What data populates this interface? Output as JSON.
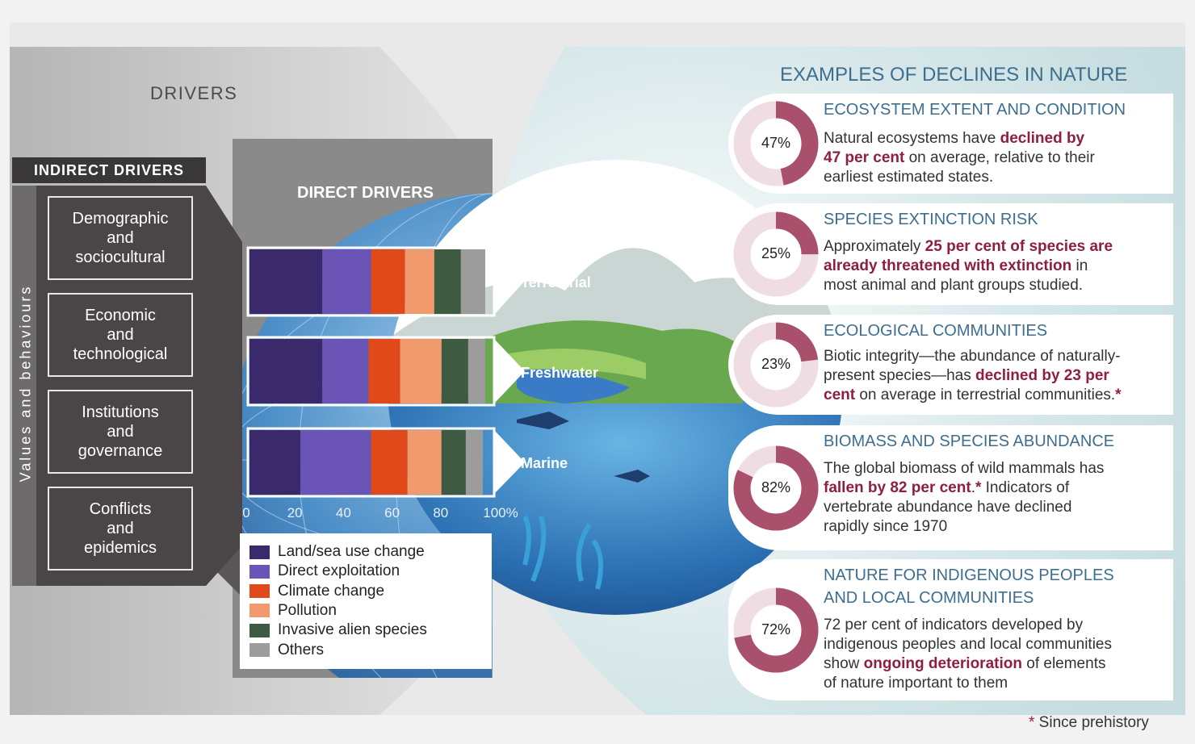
{
  "drivers_title": "DRIVERS",
  "indirect": {
    "header": "INDIRECT DRIVERS",
    "values_label": "Values and behaviours",
    "boxes": [
      [
        "Demographic",
        "and",
        "sociocultural"
      ],
      [
        "Economic",
        "and",
        "technological"
      ],
      [
        "Institutions",
        "and",
        "governance"
      ],
      [
        "Conflicts",
        "and",
        "epidemics"
      ]
    ]
  },
  "chart_data": {
    "type": "bar",
    "orientation": "horizontal",
    "stacked": true,
    "title": "DIRECT DRIVERS",
    "categories": [
      "Terrestrial",
      "Freshwater",
      "Marine"
    ],
    "xlim": [
      0,
      100
    ],
    "xticks": [
      "0",
      "20",
      "40",
      "60",
      "80",
      "100%"
    ],
    "series": [
      {
        "name": "Land/sea use change",
        "color": "#3b2a6b",
        "values": [
          30,
          30,
          21
        ]
      },
      {
        "name": "Direct exploitation",
        "color": "#6a55b6",
        "values": [
          20,
          19,
          29
        ]
      },
      {
        "name": "Climate change",
        "color": "#e04a1a",
        "values": [
          14,
          13,
          15
        ]
      },
      {
        "name": "Pollution",
        "color": "#f09a6e",
        "values": [
          12,
          17,
          14
        ]
      },
      {
        "name": "Invasive alien species",
        "color": "#3e5a40",
        "values": [
          11,
          11,
          10
        ]
      },
      {
        "name": "Others",
        "color": "#9c9c9c",
        "values": [
          10,
          7,
          7
        ]
      }
    ]
  },
  "examples": {
    "title": "EXAMPLES OF DECLINES IN NATURE",
    "cards": [
      {
        "title": [
          "ECOSYSTEM EXTENT AND CONDITION"
        ],
        "pct_label": "47%",
        "pct": 47,
        "body": [
          [
            {
              "t": "Natural ecosystems have "
            },
            {
              "t": "declined by",
              "b": true
            }
          ],
          [
            {
              "t": "47 per cent",
              "b": true
            },
            {
              "t": " on average, relative to their"
            }
          ],
          [
            {
              "t": "earliest estimated states."
            }
          ]
        ]
      },
      {
        "title": [
          "SPECIES EXTINCTION RISK"
        ],
        "pct_label": "25%",
        "pct": 25,
        "body": [
          [
            {
              "t": "Approximately "
            },
            {
              "t": "25 per cent of species are",
              "b": true
            }
          ],
          [
            {
              "t": "already threatened with extinction",
              "b": true
            },
            {
              "t": " in"
            }
          ],
          [
            {
              "t": "most animal and plant groups studied."
            }
          ]
        ]
      },
      {
        "title": [
          "ECOLOGICAL COMMUNITIES"
        ],
        "pct_label": "23%",
        "pct": 23,
        "body": [
          [
            {
              "t": "Biotic integrity—the abundance of naturally-"
            }
          ],
          [
            {
              "t": "present species—has "
            },
            {
              "t": "declined by 23 per",
              "b": true
            }
          ],
          [
            {
              "t": "cent",
              "b": true
            },
            {
              "t": " on average in terrestrial communities."
            },
            {
              "t": "*",
              "b": true
            }
          ]
        ]
      },
      {
        "title": [
          "BIOMASS AND SPECIES ABUNDANCE"
        ],
        "pct_label": "82%",
        "pct": 82,
        "body": [
          [
            {
              "t": "The global biomass of wild mammals has"
            }
          ],
          [
            {
              "t": "fallen by 82 per cent",
              "b": true
            },
            {
              "t": "."
            },
            {
              "t": "*",
              "b": true
            },
            {
              "t": " Indicators of"
            }
          ],
          [
            {
              "t": "vertebrate abundance have declined"
            }
          ],
          [
            {
              "t": "rapidly since 1970"
            }
          ]
        ]
      },
      {
        "title": [
          "NATURE FOR INDIGENOUS PEOPLES",
          "AND LOCAL COMMUNITIES"
        ],
        "pct_label": "72%",
        "pct": 72,
        "body": [
          [
            {
              "t": "72 per cent of indicators developed by"
            }
          ],
          [
            {
              "t": "indigenous peoples and local communities"
            }
          ],
          [
            {
              "t": "show "
            },
            {
              "t": "ongoing deterioration",
              "b": true
            },
            {
              "t": " of elements"
            }
          ],
          [
            {
              "t": "of nature important to them"
            }
          ]
        ]
      }
    ]
  },
  "footnote": {
    "star": "*",
    "text": " Since prehistory"
  },
  "colors": {
    "accent_blue": "#3d6e8f",
    "highlight": "#8e1f3e",
    "donut_fill": "#a9506c",
    "donut_track": "#f0dde3"
  }
}
